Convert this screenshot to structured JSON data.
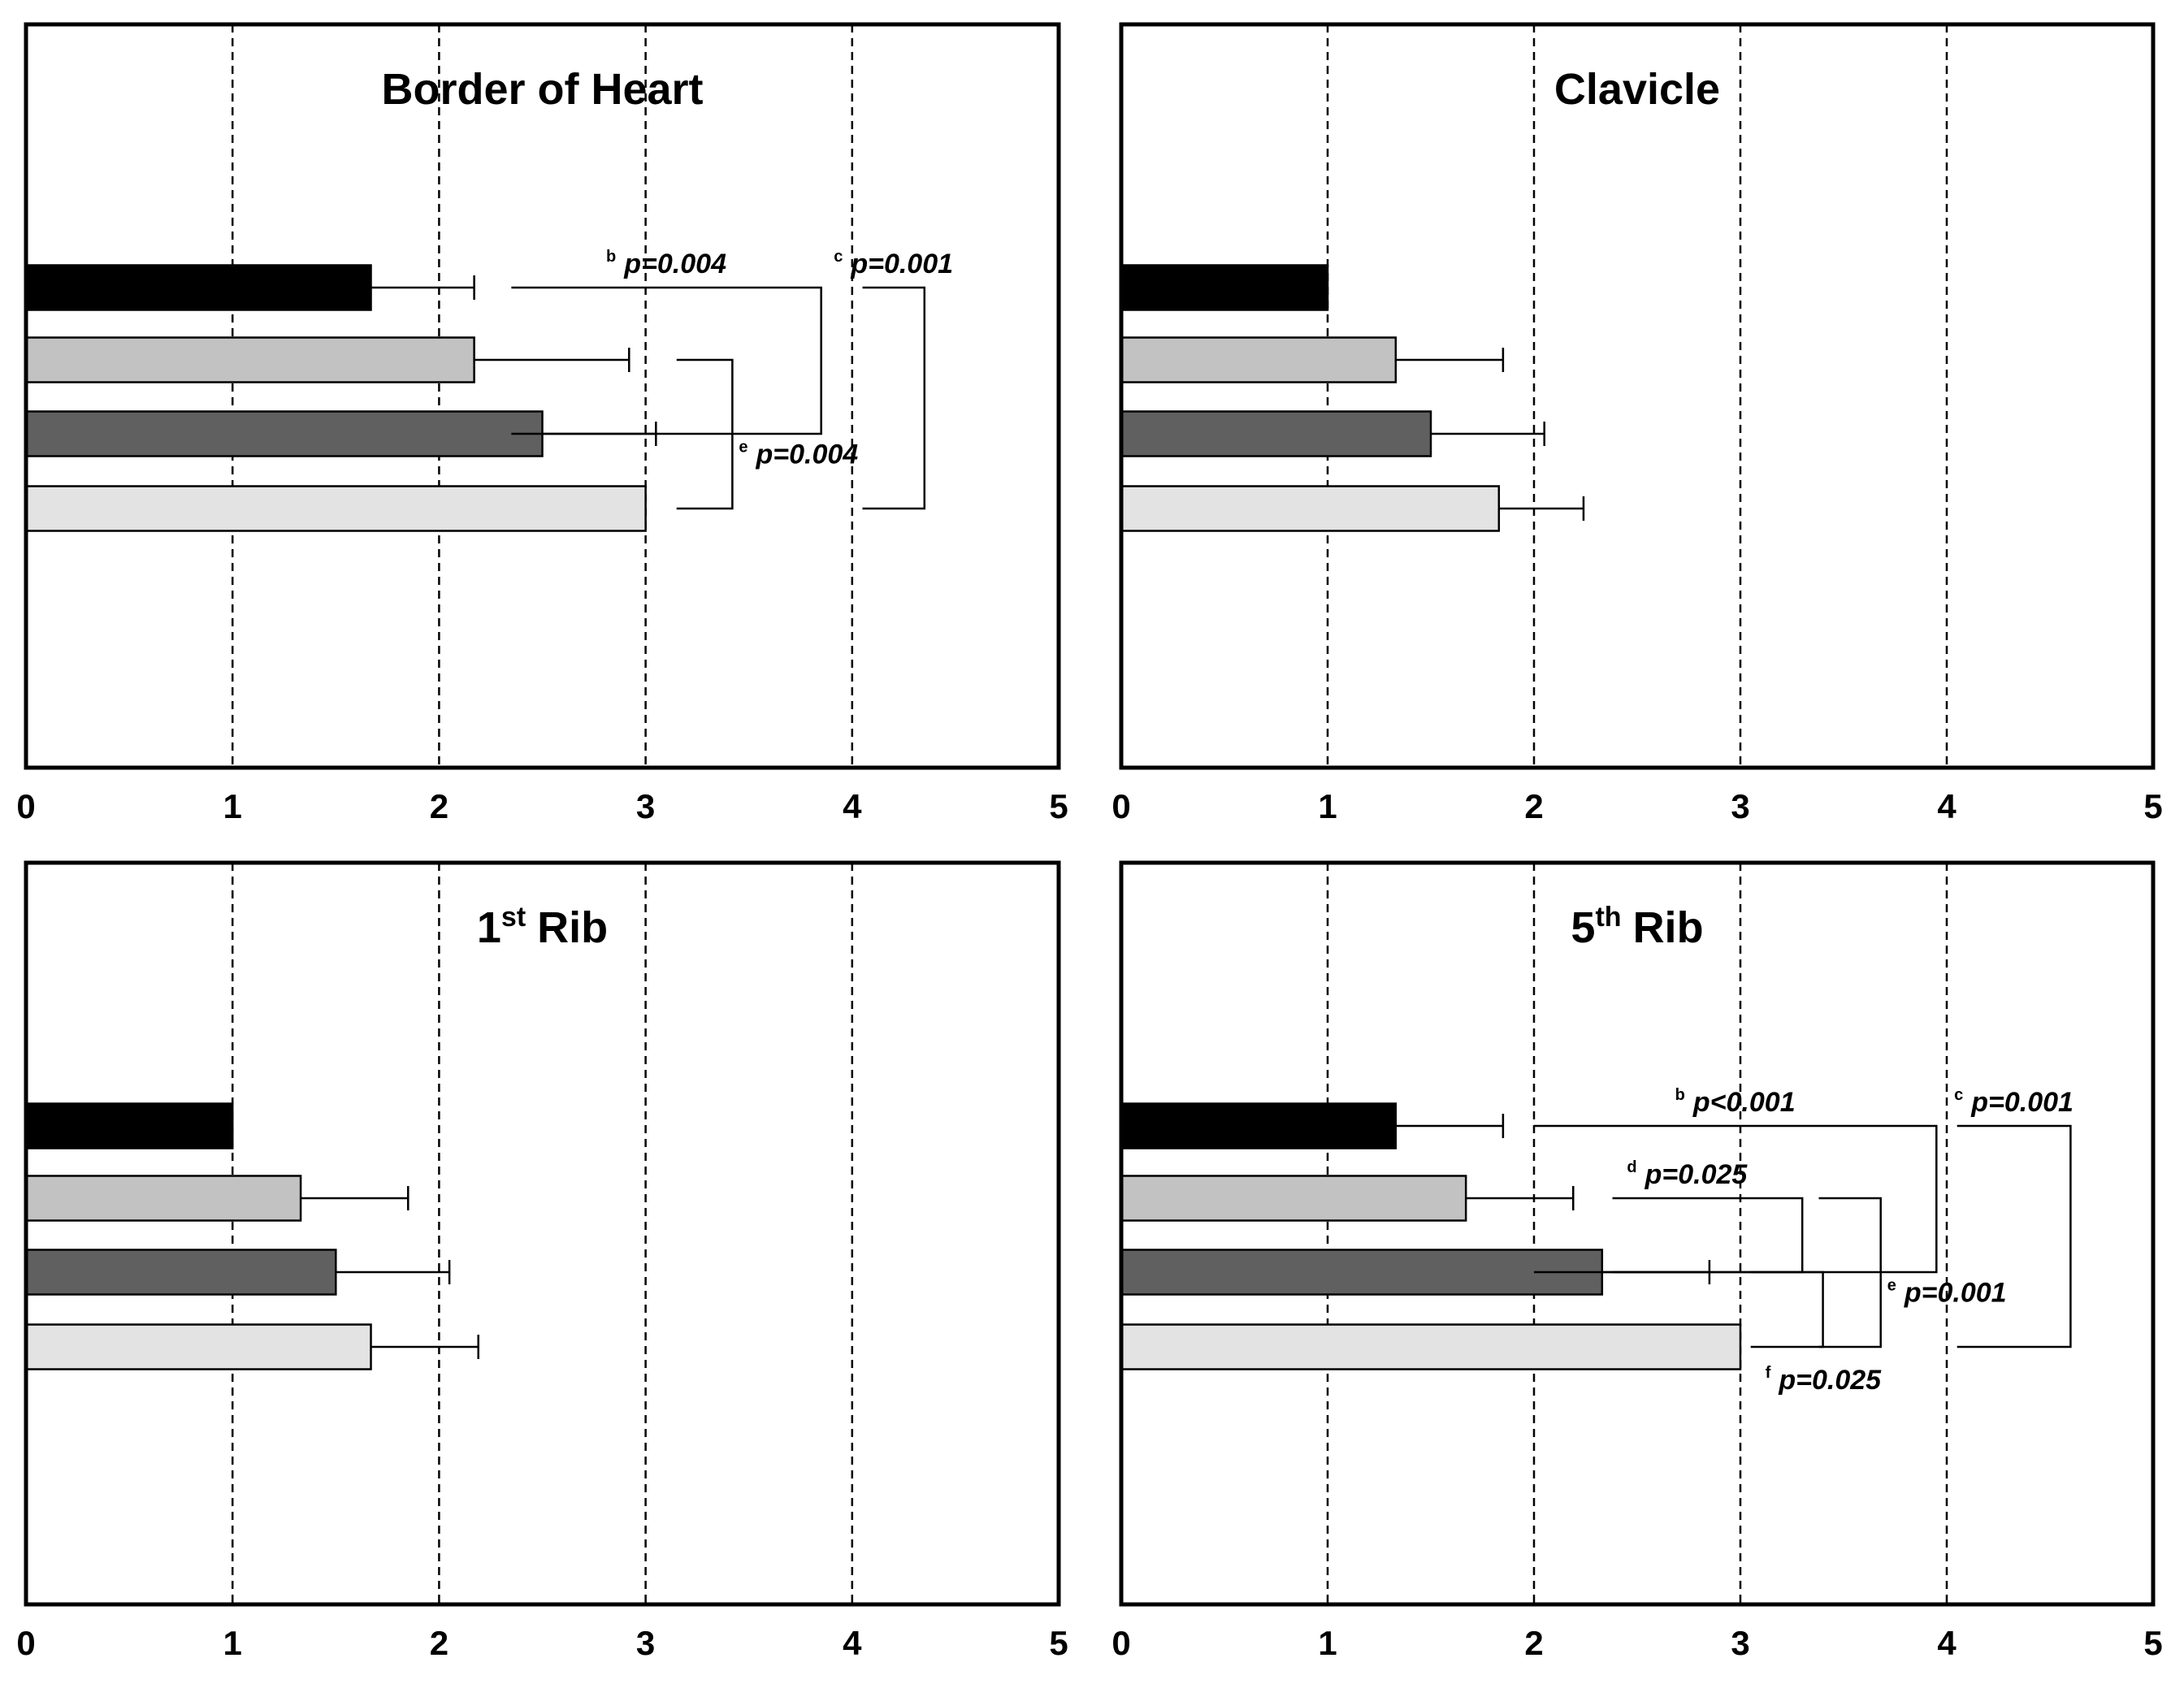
{
  "chart_data": [
    {
      "type": "bar",
      "orientation": "horizontal",
      "title": "Border of Heart",
      "title_superscript": "",
      "xlim": [
        0,
        5
      ],
      "xticks": [
        "0",
        "1",
        "2",
        "3",
        "4",
        "5"
      ],
      "grid_values": [
        1,
        2,
        3,
        4
      ],
      "series_colors": [
        "#000000",
        "#c2c2c2",
        "#606060",
        "#e3e3e3"
      ],
      "values": [
        1.67,
        2.17,
        2.5,
        3.0
      ],
      "errors": [
        0.5,
        0.75,
        0.55,
        0.0
      ],
      "annotations": [
        {
          "letter": "b",
          "label": "p=0.004",
          "x_start": 2.35,
          "x_end": 3.85,
          "from_bar": 1,
          "to_bar": 3
        },
        {
          "letter": "c",
          "label": "p=0.001",
          "x_start": 4.05,
          "x_end": 4.35,
          "from_bar": 1,
          "to_bar": 4
        },
        {
          "letter": "e",
          "label": "p=0.004",
          "x_start": 3.15,
          "x_end": 3.42,
          "from_bar": 2,
          "to_bar": 4
        }
      ]
    },
    {
      "type": "bar",
      "orientation": "horizontal",
      "title": "Clavicle",
      "title_superscript": "",
      "xlim": [
        0,
        5
      ],
      "xticks": [
        "0",
        "1",
        "2",
        "3",
        "4",
        "5"
      ],
      "grid_values": [
        1,
        2,
        3,
        4
      ],
      "series_colors": [
        "#000000",
        "#c2c2c2",
        "#606060",
        "#e3e3e3"
      ],
      "values": [
        1.0,
        1.33,
        1.5,
        1.83
      ],
      "errors": [
        0.0,
        0.52,
        0.55,
        0.41
      ],
      "annotations": []
    },
    {
      "type": "bar",
      "orientation": "horizontal",
      "title": "1",
      "title_superscript": "st",
      "title_suffix": "Rib",
      "xlim": [
        0,
        5
      ],
      "xticks": [
        "0",
        "1",
        "2",
        "3",
        "4",
        "5"
      ],
      "grid_values": [
        1,
        2,
        3,
        4
      ],
      "series_colors": [
        "#000000",
        "#c2c2c2",
        "#606060",
        "#e3e3e3"
      ],
      "values": [
        1.0,
        1.33,
        1.5,
        1.67
      ],
      "errors": [
        0.0,
        0.52,
        0.55,
        0.52
      ],
      "annotations": []
    },
    {
      "type": "bar",
      "orientation": "horizontal",
      "title": "5",
      "title_superscript": "th",
      "title_suffix": "Rib",
      "xlim": [
        0,
        5
      ],
      "xticks": [
        "0",
        "1",
        "2",
        "3",
        "4",
        "5"
      ],
      "grid_values": [
        1,
        2,
        3,
        4
      ],
      "series_colors": [
        "#000000",
        "#c2c2c2",
        "#606060",
        "#e3e3e3"
      ],
      "values": [
        1.33,
        1.67,
        2.33,
        3.0
      ],
      "errors": [
        0.52,
        0.52,
        0.52,
        0.0
      ],
      "annotations": [
        {
          "letter": "b",
          "label": "p<0.001",
          "x_start": 2.0,
          "x_end": 3.95,
          "from_bar": 1,
          "to_bar": 3
        },
        {
          "letter": "c",
          "label": "p=0.001",
          "x_start": 4.05,
          "x_end": 4.6,
          "from_bar": 1,
          "to_bar": 4
        },
        {
          "letter": "d",
          "label": "p=0.025",
          "x_start": 2.38,
          "x_end": 3.3,
          "from_bar": 2,
          "to_bar": 3
        },
        {
          "letter": "e",
          "label": "p=0.001",
          "x_start": 3.38,
          "x_end": 3.68,
          "from_bar": 2,
          "to_bar": 4
        },
        {
          "letter": "f",
          "label": "p=0.025",
          "x_start": 3.05,
          "x_end": 3.4,
          "from_bar": 3,
          "to_bar": 4
        }
      ]
    }
  ]
}
